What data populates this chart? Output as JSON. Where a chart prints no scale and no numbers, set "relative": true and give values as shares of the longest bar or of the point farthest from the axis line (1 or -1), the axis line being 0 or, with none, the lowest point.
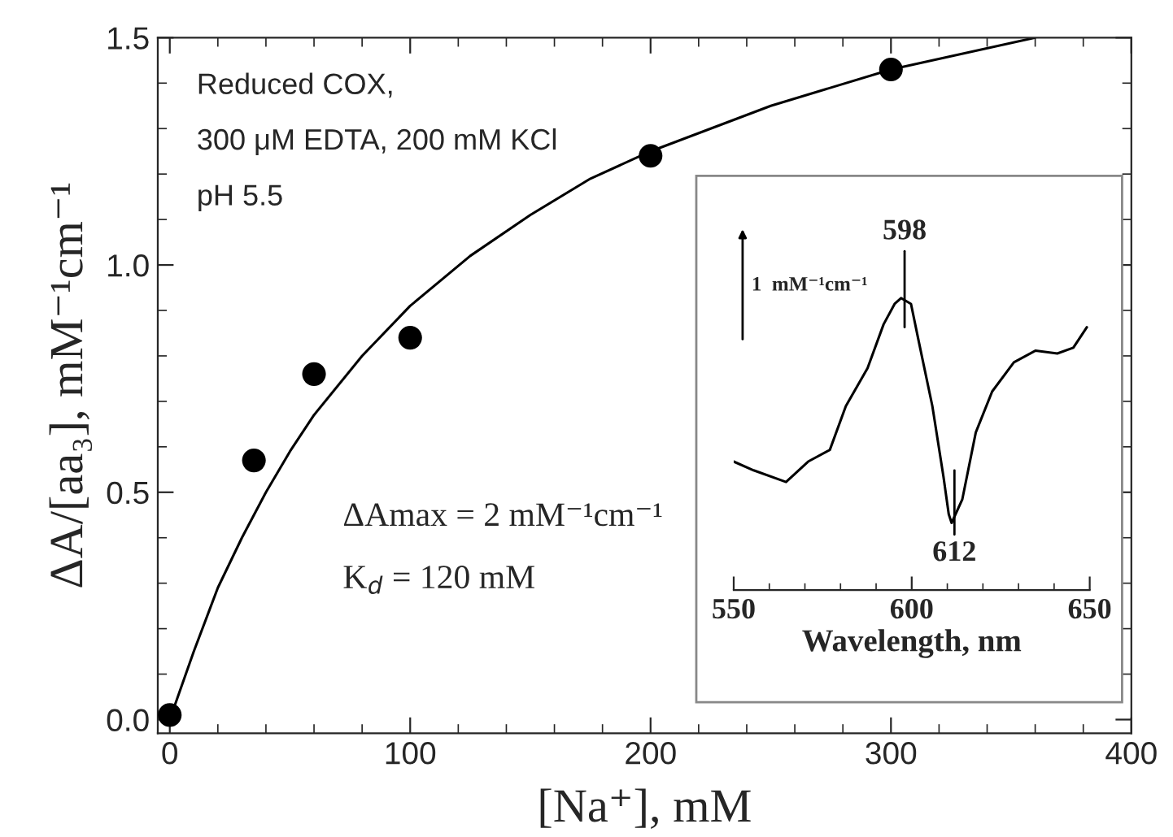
{
  "chart_data": [
    {
      "type": "scatter",
      "xlabel": "[Na⁺], mM",
      "ylabel": "ΔA/[aa₃], mM⁻¹cm⁻¹",
      "xlim": [
        -5,
        400
      ],
      "ylim": [
        -0.03,
        1.5
      ],
      "xticks": [
        0,
        100,
        200,
        300,
        400
      ],
      "yticks": [
        {
          "value": 0,
          "label": "0.0"
        },
        {
          "value": 0.5,
          "label": "0.5"
        },
        {
          "value": 1.0,
          "label": "1.0"
        },
        {
          "value": 1.5,
          "label": "1.5"
        }
      ],
      "grid": false,
      "legend": false,
      "series": [
        {
          "type": "line",
          "color": "#000000",
          "line_style": "solid",
          "marker": "none",
          "x": [
            0,
            10,
            20,
            30,
            40,
            50,
            60,
            80,
            100,
            125,
            150,
            175,
            200,
            250,
            300,
            360
          ],
          "values": [
            0.0,
            0.15,
            0.29,
            0.4,
            0.5,
            0.59,
            0.67,
            0.8,
            0.91,
            1.02,
            1.11,
            1.19,
            1.25,
            1.35,
            1.43,
            1.5
          ]
        },
        {
          "type": "scatter",
          "color": "#000000",
          "marker": "circle",
          "x": [
            0,
            35,
            60,
            100,
            200,
            300
          ],
          "values": [
            0.01,
            0.57,
            0.76,
            0.84,
            1.24,
            1.43
          ]
        }
      ],
      "annotations": [
        "Reduced COX,",
        "300 μM EDTA, 200 mM KCl",
        "pH 5.5",
        "ΔAmax = 2 mM⁻¹cm⁻¹",
        "K$_{d}$ = 120 mM"
      ]
    },
    {
      "type": "line",
      "relative": true,
      "xlabel": "Wavelength, nm",
      "xlim": [
        550,
        650
      ],
      "xticks": [
        550,
        600,
        650
      ],
      "grid": false,
      "legend": false,
      "series": [
        {
          "color": "#000000",
          "line_style": "solid",
          "marker": "none",
          "x": [
            550,
            555.6,
            564.7,
            570.9,
            577,
            581.5,
            587.6,
            592.1,
            595.2,
            597,
            599.8,
            602,
            605.8,
            608.9,
            610.4,
            611.2,
            614.2,
            618,
            622.6,
            628.7,
            634.8,
            640.9,
            645.4,
            649.2
          ],
          "values": [
            0.44,
            0.41,
            0.37,
            0.44,
            0.48,
            0.63,
            0.76,
            0.91,
            0.98,
            1.0,
            0.98,
            0.85,
            0.63,
            0.39,
            0.26,
            0.23,
            0.31,
            0.54,
            0.68,
            0.78,
            0.82,
            0.81,
            0.83,
            0.9
          ]
        }
      ],
      "annotations": [
        {
          "text": "598",
          "x": 598,
          "y": 1.0
        },
        {
          "text": "612",
          "x": 612,
          "y": 0.23
        },
        "1  mM⁻¹cm⁻¹"
      ]
    }
  ]
}
